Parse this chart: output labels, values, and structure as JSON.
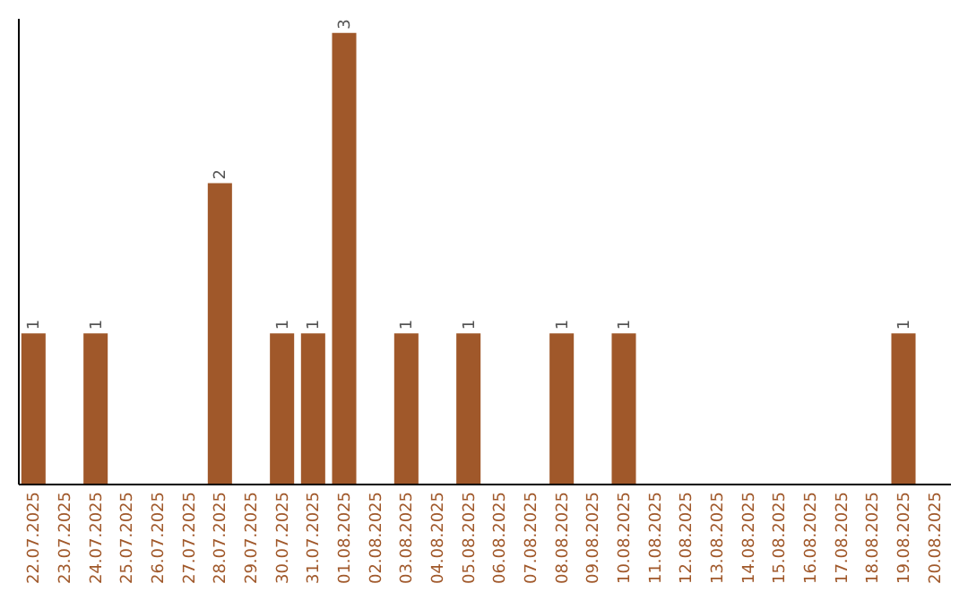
{
  "chart_data": {
    "type": "bar",
    "categories": [
      "22.07.2025",
      "23.07.2025",
      "24.07.2025",
      "25.07.2025",
      "26.07.2025",
      "27.07.2025",
      "28.07.2025",
      "29.07.2025",
      "30.07.2025",
      "31.07.2025",
      "01.08.2025",
      "02.08.2025",
      "03.08.2025",
      "04.08.2025",
      "05.08.2025",
      "06.08.2025",
      "07.08.2025",
      "08.08.2025",
      "09.08.2025",
      "10.08.2025",
      "11.08.2025",
      "12.08.2025",
      "13.08.2025",
      "14.08.2025",
      "15.08.2025",
      "16.08.2025",
      "17.08.2025",
      "18.08.2025",
      "19.08.2025",
      "20.08.2025"
    ],
    "values": [
      1,
      0,
      1,
      0,
      0,
      0,
      2,
      0,
      1,
      1,
      3,
      0,
      1,
      0,
      1,
      0,
      0,
      1,
      0,
      1,
      0,
      0,
      0,
      0,
      0,
      0,
      0,
      0,
      1,
      0
    ],
    "value_labels": [
      "1",
      null,
      "1",
      null,
      null,
      null,
      "2",
      null,
      "1",
      "1",
      "3",
      null,
      "1",
      null,
      "1",
      null,
      null,
      "1",
      null,
      "1",
      null,
      null,
      null,
      null,
      null,
      null,
      null,
      null,
      "1",
      null
    ],
    "color": "#a0582a",
    "ylim": [
      0,
      3.1
    ],
    "grid": false,
    "tick_labels": "x"
  }
}
